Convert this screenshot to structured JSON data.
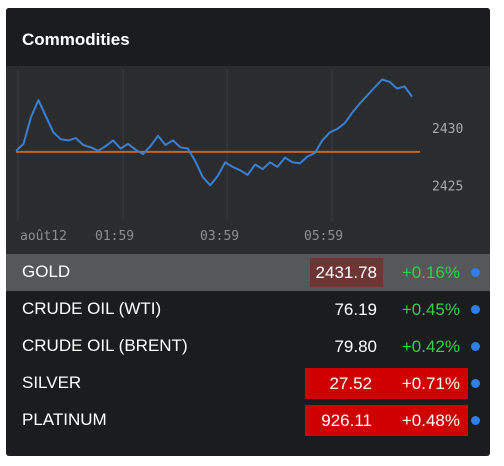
{
  "widget": {
    "title": "Commodities"
  },
  "chart": {
    "x_ticks": [
      "août12",
      "01:59",
      "03:59",
      "05:59"
    ],
    "y_ticks": [
      "2430",
      "2425"
    ],
    "line_color": "#3a7fd5",
    "reference_color": "#b8692d"
  },
  "chart_data": {
    "type": "line",
    "title": "",
    "xlabel": "",
    "ylabel": "",
    "x_ticks": [
      "août12",
      "01:59",
      "03:59",
      "05:59"
    ],
    "y_ticks": [
      2430,
      2425
    ],
    "ylim": [
      2422.5,
      2434.5
    ],
    "reference_line": 2427.9,
    "series": [
      {
        "values": [
          2428.0,
          2428.6,
          2430.9,
          2432.4,
          2431.0,
          2429.6,
          2429.0,
          2428.9,
          2429.1,
          2428.5,
          2428.3,
          2428.0,
          2428.4,
          2428.9,
          2428.2,
          2428.6,
          2428.1,
          2427.7,
          2428.4,
          2429.3,
          2428.5,
          2428.9,
          2428.3,
          2428.2,
          2427.1,
          2425.7,
          2425.0,
          2425.8,
          2427.0,
          2426.6,
          2426.3,
          2425.9,
          2426.8,
          2426.4,
          2427.0,
          2426.6,
          2427.4,
          2427.0,
          2426.9,
          2427.5,
          2427.8,
          2428.9,
          2429.6,
          2429.9,
          2430.4,
          2431.3,
          2432.1,
          2432.8,
          2433.5,
          2434.2,
          2434.0,
          2433.4,
          2433.6,
          2432.7
        ]
      }
    ]
  },
  "rows": [
    {
      "name": "GOLD",
      "price": "2431.78",
      "change": "+0.16%"
    },
    {
      "name": "CRUDE OIL (WTI)",
      "price": "76.19",
      "change": "+0.45%"
    },
    {
      "name": "CRUDE OIL (BRENT)",
      "price": "79.80",
      "change": "+0.42%"
    },
    {
      "name": "SILVER",
      "price": "27.52",
      "change": "+0.71%"
    },
    {
      "name": "PLATINUM",
      "price": "926.11",
      "change": "+0.48%"
    }
  ],
  "colors": {
    "positive": "#2fd14a",
    "negative_bg": "#d10000",
    "dot": "#2f7fe8"
  }
}
